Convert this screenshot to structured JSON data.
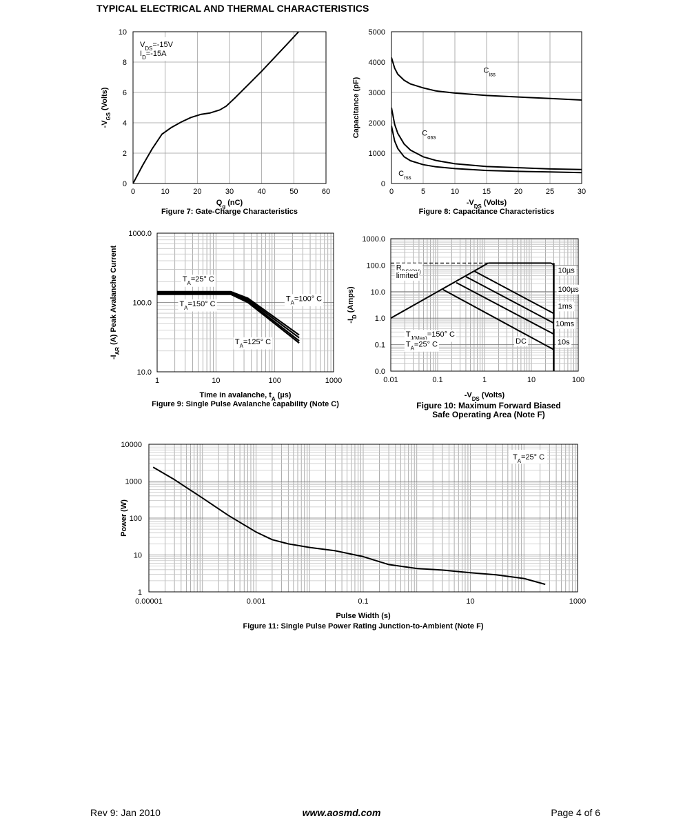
{
  "page": {
    "title": "TYPICAL ELECTRICAL AND THERMAL CHARACTERISTICS",
    "footer_left": "Rev 9: Jan 2010",
    "footer_center": "www.aosmd.com",
    "footer_right": "Page 4 of 6"
  },
  "chart_data": [
    {
      "id": "fig7",
      "type": "line",
      "caption": "Figure 7: Gate-Charge Characteristics",
      "xlabel": {
        "main": "Q",
        "sub": "g",
        "tail": " (nC)"
      },
      "ylabel": {
        "main": "-V",
        "sub": "GS",
        "tail": " (Volts)"
      },
      "xlim": [
        0,
        60
      ],
      "ylim": [
        0,
        10
      ],
      "xticks": [
        0,
        10,
        20,
        30,
        40,
        50,
        60
      ],
      "yticks": [
        0,
        2,
        4,
        6,
        8,
        10
      ],
      "tick_labels_x": [
        "0",
        "10",
        "20",
        "30",
        "40",
        "50",
        "60"
      ],
      "tick_labels_y": [
        "0",
        "2",
        "4",
        "6",
        "8",
        "10"
      ],
      "grid": true,
      "legend": [
        {
          "main": "V",
          "sub": "DS",
          "tail": "=-15V"
        },
        {
          "main": "I",
          "sub": "D",
          "tail": "=-15A"
        }
      ],
      "series": [
        {
          "x": [
            0,
            3,
            6,
            9,
            12,
            15,
            18,
            21,
            24,
            27,
            29,
            32,
            36,
            40,
            44,
            48,
            51.5
          ],
          "y": [
            0,
            1.2,
            2.3,
            3.25,
            3.7,
            4.05,
            4.35,
            4.55,
            4.65,
            4.85,
            5.1,
            5.7,
            6.55,
            7.4,
            8.3,
            9.2,
            10
          ]
        }
      ]
    },
    {
      "id": "fig8",
      "type": "line",
      "caption": "Figure 8: Capacitance Characteristics",
      "xlabel": {
        "main": "-V",
        "sub": "DS",
        "tail": " (Volts)"
      },
      "ylabel": {
        "main": "Capacitance (pF)",
        "sub": "",
        "tail": ""
      },
      "xlim": [
        0,
        30
      ],
      "ylim": [
        0,
        5000
      ],
      "xticks": [
        0,
        5,
        10,
        15,
        20,
        25,
        30
      ],
      "yticks": [
        0,
        1000,
        2000,
        3000,
        4000,
        5000
      ],
      "tick_labels_x": [
        "0",
        "5",
        "10",
        "15",
        "20",
        "25",
        "30"
      ],
      "tick_labels_y": [
        "0",
        "1000",
        "2000",
        "3000",
        "4000",
        "5000"
      ],
      "grid": true,
      "series": [
        {
          "label": {
            "main": "C",
            "sub": "iss"
          },
          "label_at": [
            14.5,
            3650
          ],
          "x": [
            0,
            0.5,
            1,
            2,
            3,
            5,
            7,
            10,
            15,
            20,
            25,
            30
          ],
          "y": [
            4150,
            3800,
            3600,
            3400,
            3280,
            3150,
            3050,
            2980,
            2900,
            2850,
            2800,
            2750
          ]
        },
        {
          "label": {
            "main": "C",
            "sub": "oss"
          },
          "label_at": [
            4.8,
            1580
          ],
          "x": [
            0,
            0.5,
            1,
            2,
            3,
            5,
            7,
            10,
            15,
            20,
            25,
            30
          ],
          "y": [
            2500,
            1950,
            1650,
            1300,
            1100,
            880,
            760,
            650,
            560,
            520,
            480,
            460
          ]
        },
        {
          "label": {
            "main": "C",
            "sub": "rss"
          },
          "label_at": [
            1.1,
            250
          ],
          "x": [
            0,
            0.5,
            1,
            2,
            3,
            5,
            7,
            10,
            15,
            20,
            25,
            30
          ],
          "y": [
            1900,
            1400,
            1150,
            880,
            750,
            620,
            550,
            490,
            430,
            400,
            380,
            360
          ]
        }
      ]
    },
    {
      "id": "fig9",
      "type": "line",
      "caption": "Figure 9: Single Pulse Avalanche capability (Note C)",
      "xlabel": {
        "main": "Time in avalanche, t",
        "sub": "A",
        "tail": " (µs)"
      },
      "ylabel": {
        "main": "-I",
        "sub": "AR",
        "tail": " (A) Peak Avalanche Current"
      },
      "xscale": "log",
      "yscale": "log",
      "xlim": [
        1,
        1000
      ],
      "ylim": [
        10,
        1000
      ],
      "xticks": [
        1,
        10,
        100,
        1000
      ],
      "yticks": [
        10,
        100,
        1000
      ],
      "tick_labels_x": [
        "1",
        "10",
        "100",
        "1000"
      ],
      "tick_labels_y": [
        "10.0",
        "100.0",
        "1000.0"
      ],
      "grid": true,
      "series": [
        {
          "x": [
            1,
            18,
            35,
            260
          ],
          "y": [
            143,
            143,
            115,
            34
          ]
        },
        {
          "x": [
            1,
            18,
            35,
            260
          ],
          "y": [
            139,
            139,
            110,
            31
          ]
        },
        {
          "x": [
            1,
            18,
            35,
            260
          ],
          "y": [
            135,
            135,
            105,
            28
          ]
        },
        {
          "x": [
            1,
            18,
            35,
            260
          ],
          "y": [
            131,
            131,
            100,
            26
          ]
        }
      ],
      "annotations": [
        {
          "main": "T",
          "sub": "A",
          "tail": "=25° C",
          "at": [
            2.7,
            200
          ]
        },
        {
          "main": "T",
          "sub": "A",
          "tail": "=150° C",
          "at": [
            2.4,
            88
          ]
        },
        {
          "main": "T",
          "sub": "A",
          "tail": "=100° C",
          "at": [
            155,
            105
          ]
        },
        {
          "main": "T",
          "sub": "A",
          "tail": "=125° C",
          "at": [
            21,
            25
          ]
        }
      ]
    },
    {
      "id": "fig10",
      "type": "line",
      "caption_lines": [
        "Figure 10: Maximum Forward Biased",
        "Safe Operating Area (Note F)"
      ],
      "xlabel": {
        "main": "-V",
        "sub": "DS",
        "tail": " (Volts)"
      },
      "ylabel": {
        "main": "-I",
        "sub": "D",
        "tail": " (Amps)"
      },
      "xscale": "log",
      "yscale": "log",
      "xlim": [
        0.01,
        100
      ],
      "ylim": [
        0.01,
        1000
      ],
      "xticks": [
        0.01,
        0.1,
        1,
        10,
        100
      ],
      "yticks": [
        0.01,
        0.1,
        1,
        10,
        100,
        1000
      ],
      "tick_labels_x": [
        "0.01",
        "0.1",
        "1",
        "10",
        "100"
      ],
      "tick_labels_y": [
        "0.0",
        "0.1",
        "1.0",
        "10.0",
        "100.0",
        "1000.0"
      ],
      "grid": true,
      "limit_line_y": 120,
      "vds_max": 30,
      "series": [
        {
          "label": "RDS(ON) limit",
          "x": [
            0.01,
            1.2
          ],
          "y": [
            1,
            120
          ]
        },
        {
          "label": "10µs",
          "x": [
            1.2,
            3,
            26,
            30
          ],
          "y": [
            120,
            120,
            120,
            105
          ]
        },
        {
          "label": "100µs",
          "x": [
            0.6,
            30
          ],
          "y": [
            60,
            1.5
          ]
        },
        {
          "label": "1ms",
          "x": [
            0.4,
            30
          ],
          "y": [
            37,
            0.65
          ]
        },
        {
          "label": "10ms",
          "x": [
            0.25,
            30
          ],
          "y": [
            22,
            0.25
          ]
        },
        {
          "label": "DC",
          "x": [
            0.13,
            30
          ],
          "y": [
            12,
            0.065
          ]
        }
      ],
      "annotations": [
        {
          "main": "R",
          "sub": "DS(ON)",
          "tail": "",
          "at": [
            0.013,
            65
          ]
        },
        {
          "main": "limited",
          "sub": "",
          "tail": "",
          "at": [
            0.013,
            33
          ]
        },
        {
          "main": "10µs",
          "sub": "",
          "tail": "",
          "at": [
            37,
            52
          ]
        },
        {
          "main": "100µs",
          "sub": "",
          "tail": "",
          "at": [
            37,
            10
          ]
        },
        {
          "main": "1ms",
          "sub": "",
          "tail": "",
          "at": [
            37,
            2.3
          ]
        },
        {
          "main": "10ms",
          "sub": "",
          "tail": "",
          "at": [
            33,
            0.5
          ]
        },
        {
          "main": "DC",
          "sub": "",
          "tail": "",
          "at": [
            4.6,
            0.11
          ]
        },
        {
          "main": "10s",
          "sub": "",
          "tail": "",
          "at": [
            36,
            0.1
          ]
        },
        {
          "main": "T",
          "sub": "J(Max)",
          "tail": "=150° C",
          "at": [
            0.021,
            0.2
          ]
        },
        {
          "main": "T",
          "sub": "A",
          "tail": "=25° C",
          "at": [
            0.021,
            0.085
          ]
        }
      ]
    },
    {
      "id": "fig11",
      "type": "line",
      "caption": "Figure 11: Single Pulse Power Rating Junction-to-Ambient (Note F)",
      "xlabel": {
        "main": "Pulse Width (s)",
        "sub": "",
        "tail": ""
      },
      "ylabel": {
        "main": "Power (W)",
        "sub": "",
        "tail": ""
      },
      "xscale": "log",
      "yscale": "log",
      "xlim": [
        1e-05,
        1000
      ],
      "ylim": [
        1,
        10000
      ],
      "xticks": [
        1e-05,
        0.001,
        0.1,
        10,
        1000
      ],
      "yticks": [
        1,
        10,
        100,
        1000,
        10000
      ],
      "tick_labels_x": [
        "0.00001",
        "0.001",
        "0.1",
        "10",
        "1000"
      ],
      "tick_labels_y": [
        "1",
        "10",
        "100",
        "1000",
        "10000"
      ],
      "grid": true,
      "legend": [
        {
          "main": "T",
          "sub": "A",
          "tail": "=25° C"
        }
      ],
      "series": [
        {
          "x": [
            1.2e-05,
            3e-05,
            0.0001,
            0.0003,
            0.001,
            0.002,
            0.004,
            0.01,
            0.03,
            0.1,
            0.3,
            1,
            3,
            10,
            30,
            100,
            250
          ],
          "y": [
            2400,
            1100,
            350,
            120,
            42,
            26,
            20,
            16,
            13,
            9,
            5.5,
            4.3,
            3.9,
            3.3,
            2.9,
            2.3,
            1.6
          ]
        }
      ]
    }
  ]
}
